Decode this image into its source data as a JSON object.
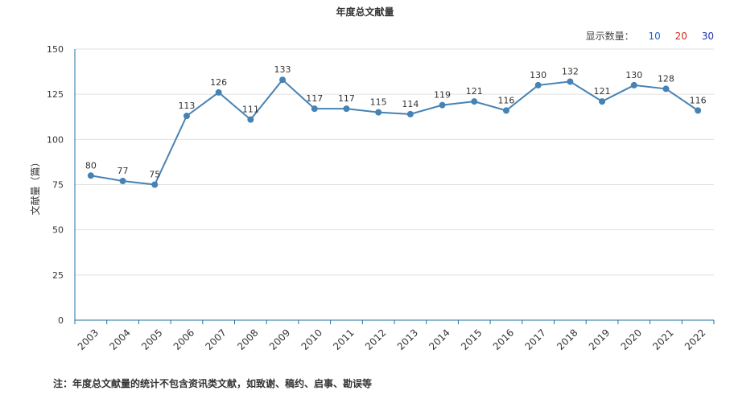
{
  "title": "年度总文献量",
  "display_count": {
    "label": "显示数量：",
    "options": [
      "10",
      "20",
      "30"
    ]
  },
  "note": "注：年度总文献量的统计不包含资讯类文献，如致谢、稿约、启事、勘误等",
  "colors": {
    "line": "#4682b4",
    "axis": "#1f6f9f",
    "grid": "#e0e0e0"
  },
  "chart_data": {
    "type": "line",
    "ylabel": "文献量（篇）",
    "xlabel": "",
    "ylim": [
      0,
      150
    ],
    "yticks": [
      0,
      25,
      50,
      75,
      100,
      125,
      150
    ],
    "categories": [
      "2003",
      "2004",
      "2005",
      "2006",
      "2007",
      "2008",
      "2009",
      "2010",
      "2011",
      "2012",
      "2013",
      "2014",
      "2015",
      "2016",
      "2017",
      "2018",
      "2019",
      "2020",
      "2021",
      "2022"
    ],
    "values": [
      80,
      77,
      75,
      113,
      126,
      111,
      133,
      117,
      117,
      115,
      114,
      119,
      121,
      116,
      130,
      132,
      121,
      130,
      128,
      116
    ],
    "grid": true
  }
}
